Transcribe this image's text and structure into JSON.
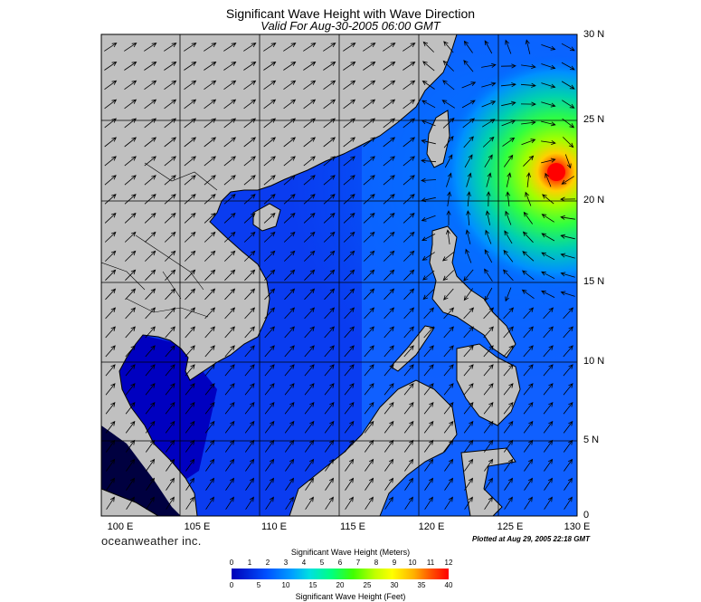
{
  "title": "Significant Wave Height with Wave Direction",
  "subtitle": "Valid For Aug-30-2005 06:00 GMT",
  "lat_labels": [
    "30 N",
    "25 N",
    "20 N",
    "15 N",
    "10 N",
    "5 N",
    "0"
  ],
  "lon_labels": [
    "100 E",
    "105 E",
    "110 E",
    "115 E",
    "120 E",
    "125 E",
    "130 E"
  ],
  "company": "oceanweather inc.",
  "plotted": "Plotted at Aug 29, 2005 22:18 GMT",
  "colorbar": {
    "meters_title": "Significant Wave Height (Meters)",
    "feet_title": "Significant Wave Height (Feet)",
    "meters_ticks": [
      "0",
      "1",
      "2",
      "3",
      "4",
      "5",
      "6",
      "7",
      "8",
      "9",
      "10",
      "11",
      "12"
    ],
    "feet_ticks": [
      "0",
      "5",
      "10",
      "15",
      "20",
      "25",
      "30",
      "35",
      "40"
    ]
  },
  "colors": {
    "land": "#c0c0c0",
    "water_low": "#0000b8",
    "water_mid": "#0060ff",
    "peak": "#ff0000"
  }
}
